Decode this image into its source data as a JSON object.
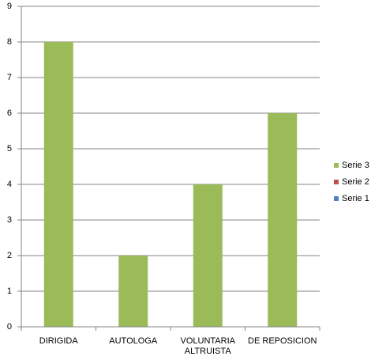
{
  "chart_data": {
    "type": "bar",
    "categories": [
      "DIRIGIDA",
      "AUTOLOGA",
      "VOLUNTARIA ALTRUISTA",
      "DE REPOSICION"
    ],
    "series": [
      {
        "name": "Serie 1",
        "color": "#4f81bd",
        "values": [
          null,
          null,
          null,
          null
        ]
      },
      {
        "name": "Serie 2",
        "color": "#c0504d",
        "values": [
          null,
          null,
          null,
          null
        ]
      },
      {
        "name": "Serie 3",
        "color": "#9bbb59",
        "values": [
          8,
          2,
          4,
          6
        ]
      }
    ],
    "ylim": [
      0,
      9
    ],
    "yticks": [
      0,
      1,
      2,
      3,
      4,
      5,
      6,
      7,
      8,
      9
    ],
    "grid": true,
    "legend": "right"
  }
}
